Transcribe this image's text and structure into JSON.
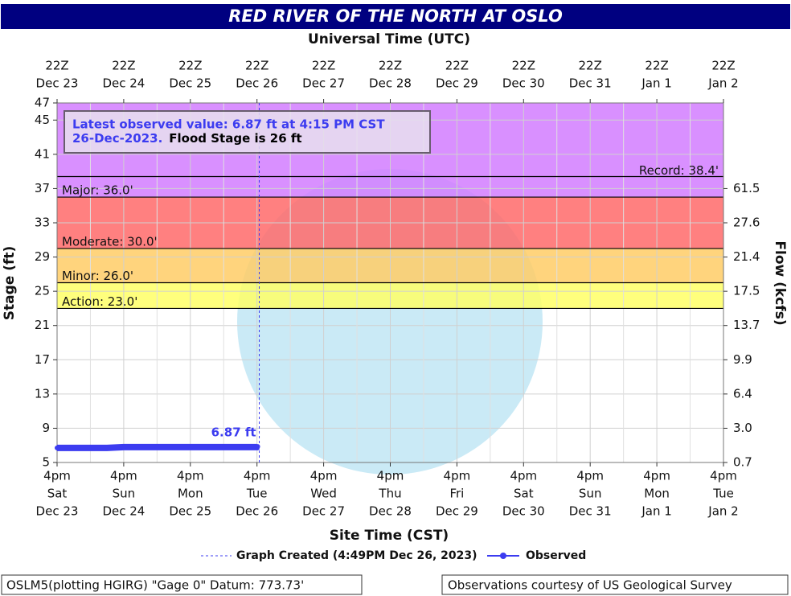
{
  "chart_data": {
    "type": "line",
    "title": "RED RIVER OF THE NORTH AT OSLO",
    "x_top_label": "Universal Time (UTC)",
    "xlabel": "Site Time (CST)",
    "ylabel": "Stage (ft)",
    "y2label": "Flow (kcfs)",
    "xlim": [
      "2023-12-23T16:00",
      "2024-01-02T16:00"
    ],
    "xticks": [
      {
        "value": "2023-12-23T16:00",
        "utc": "22Z",
        "utc_date": "Dec 23",
        "time": "4pm",
        "weekday": "Sat",
        "date": "Dec 23"
      },
      {
        "value": "2023-12-24T16:00",
        "utc": "22Z",
        "utc_date": "Dec 24",
        "time": "4pm",
        "weekday": "Sun",
        "date": "Dec 24"
      },
      {
        "value": "2023-12-25T16:00",
        "utc": "22Z",
        "utc_date": "Dec 25",
        "time": "4pm",
        "weekday": "Mon",
        "date": "Dec 25"
      },
      {
        "value": "2023-12-26T16:00",
        "utc": "22Z",
        "utc_date": "Dec 26",
        "time": "4pm",
        "weekday": "Tue",
        "date": "Dec 26"
      },
      {
        "value": "2023-12-27T16:00",
        "utc": "22Z",
        "utc_date": "Dec 27",
        "time": "4pm",
        "weekday": "Wed",
        "date": "Dec 27"
      },
      {
        "value": "2023-12-28T16:00",
        "utc": "22Z",
        "utc_date": "Dec 28",
        "time": "4pm",
        "weekday": "Thu",
        "date": "Dec 28"
      },
      {
        "value": "2023-12-29T16:00",
        "utc": "22Z",
        "utc_date": "Dec 29",
        "time": "4pm",
        "weekday": "Fri",
        "date": "Dec 29"
      },
      {
        "value": "2023-12-30T16:00",
        "utc": "22Z",
        "utc_date": "Dec 30",
        "time": "4pm",
        "weekday": "Sat",
        "date": "Dec 30"
      },
      {
        "value": "2023-12-31T16:00",
        "utc": "22Z",
        "utc_date": "Dec 31",
        "time": "4pm",
        "weekday": "Sun",
        "date": "Dec 31"
      },
      {
        "value": "2024-01-01T16:00",
        "utc": "22Z",
        "utc_date": "Jan 1",
        "time": "4pm",
        "weekday": "Mon",
        "date": "Jan 1"
      },
      {
        "value": "2024-01-02T16:00",
        "utc": "22Z",
        "utc_date": "Jan 2",
        "time": "4pm",
        "weekday": "Tue",
        "date": "Jan 2"
      }
    ],
    "ylim": [
      5,
      47
    ],
    "yticks": [
      5,
      9,
      13,
      17,
      21,
      25,
      29,
      33,
      37,
      41,
      45,
      47
    ],
    "y2ticks": [
      0.7,
      {
        "value": 3,
        "label": "3.0"
      },
      6.4,
      9.9,
      13.7,
      17.5,
      21.4,
      27.6,
      61.5
    ],
    "y2tick_stage": [
      5,
      9,
      13,
      17,
      21,
      25,
      29,
      33,
      37
    ],
    "grid": true,
    "flood_categories": [
      {
        "label": "Action: 23.0'",
        "value": 23,
        "color": "#ffff66"
      },
      {
        "label": "Minor: 26.0'",
        "value": 26,
        "color": "#ffcc66"
      },
      {
        "label": "Moderate: 30.0'",
        "value": 30,
        "color": "#ff6a6a"
      },
      {
        "label": "Major: 36.0'",
        "value": 36,
        "color": "#d27cff"
      }
    ],
    "record": {
      "label": "Record: 38.4'",
      "value": 38.4
    },
    "graph_created": {
      "label": "Graph Created (4:49PM Dec 26, 2023)",
      "x": "2023-12-26T16:49"
    },
    "series": [
      {
        "name": "Observed",
        "color": "#3c3cf0",
        "x": [
          "2023-12-23T16:00",
          "2023-12-23T22:00",
          "2023-12-24T04:00",
          "2023-12-24T10:00",
          "2023-12-24T16:00",
          "2023-12-24T22:00",
          "2023-12-25T04:00",
          "2023-12-25T10:00",
          "2023-12-25T16:00",
          "2023-12-25T22:00",
          "2023-12-26T04:00",
          "2023-12-26T10:00",
          "2023-12-26T16:00",
          "2023-12-26T16:15"
        ],
        "values": [
          6.7,
          6.7,
          6.7,
          6.7,
          6.8,
          6.8,
          6.8,
          6.8,
          6.8,
          6.8,
          6.8,
          6.8,
          6.8,
          6.87
        ],
        "value_labels": [
          null,
          null,
          null,
          null,
          null,
          null,
          null,
          null,
          null,
          null,
          null,
          null,
          null,
          "6.87 ft"
        ]
      }
    ],
    "info": {
      "line1": "Latest observed value: 6.87 ft at 4:15 PM CST",
      "line2_date": "26-Dec-2023.",
      "line2_flood": "Flood Stage is 26 ft"
    },
    "footer": {
      "left": "OSLM5(plotting HGIRG) \"Gage 0\" Datum: 773.73'",
      "right": "Observations courtesy of US Geological Survey"
    }
  }
}
